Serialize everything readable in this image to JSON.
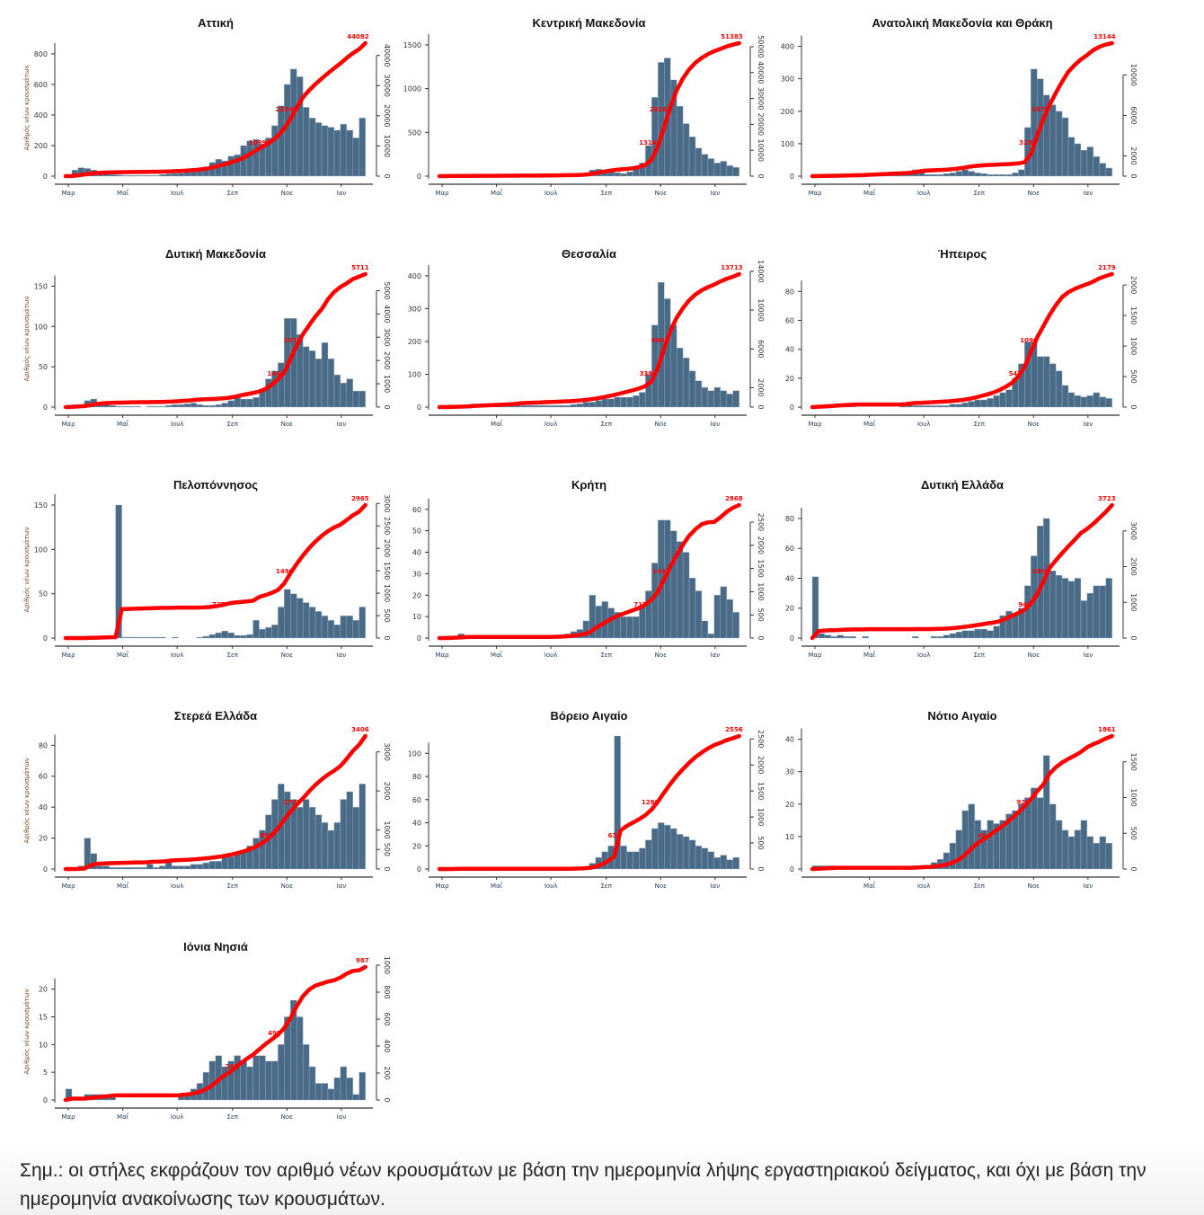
{
  "y_axis_label": "Αριθμός νέων κρουσμάτων",
  "months": [
    "Μαρ",
    "Μαΐ",
    "Ιουλ",
    "Σεπ",
    "Νοε",
    "Ιαν"
  ],
  "note": "Σημ.: οι στήλες εκφράζουν τον αριθμό νέων κρουσμάτων με βάση την ημερομηνία λήψης εργαστηριακού δείγματος, και όχι με βάση την ημερομηνία ανακοίνωσης των κρουσμάτων.",
  "colors": {
    "bars": "#4a6b88",
    "cumulative": "#ff0000"
  },
  "chart_data": [
    {
      "type": "bar+line",
      "title": "Αττική",
      "total": 44082,
      "total_label": "44082",
      "quarter_label": "10990",
      "half_label": "22041",
      "left_max": 870,
      "left_ticks": [
        0,
        200,
        400,
        600,
        800
      ],
      "right_ticks": [
        0,
        10000,
        20000,
        30000,
        40000
      ],
      "month_ticks": [
        0,
        1,
        2,
        3,
        4,
        5
      ],
      "weekly_new_cases": [
        10,
        40,
        55,
        50,
        40,
        20,
        15,
        10,
        8,
        5,
        5,
        5,
        5,
        5,
        5,
        10,
        15,
        18,
        20,
        25,
        30,
        40,
        60,
        90,
        110,
        100,
        130,
        140,
        200,
        230,
        240,
        210,
        250,
        330,
        460,
        600,
        700,
        650,
        450,
        380,
        350,
        330,
        320,
        300,
        340,
        300,
        250,
        380
      ]
    },
    {
      "type": "bar+line",
      "title": "Κεντρική Μακεδονία",
      "total": 51383,
      "total_label": "51383",
      "quarter_label": "13141",
      "half_label": "25264",
      "left_max": 1520,
      "left_ticks": [
        0,
        500,
        1000,
        1500
      ],
      "right_ticks": [
        0,
        10000,
        20000,
        30000,
        40000,
        50000
      ],
      "month_ticks": [
        0,
        1,
        2,
        3,
        4,
        5
      ],
      "weekly_new_cases": [
        5,
        5,
        3,
        3,
        2,
        2,
        2,
        2,
        2,
        2,
        2,
        2,
        2,
        2,
        2,
        2,
        3,
        5,
        5,
        5,
        8,
        10,
        15,
        40,
        70,
        80,
        70,
        60,
        40,
        30,
        50,
        80,
        150,
        350,
        900,
        1300,
        1350,
        1100,
        800,
        600,
        450,
        320,
        250,
        200,
        150,
        170,
        120,
        100
      ]
    },
    {
      "type": "bar+line",
      "title": "Ανατολική Μακεδονία και Θράκη",
      "total": 13144,
      "total_label": "13144",
      "quarter_label": "3283",
      "half_label": "6572",
      "left_max": 410,
      "left_ticks": [
        0,
        100,
        200,
        300,
        400
      ],
      "right_ticks": [
        0,
        2000,
        6000,
        10000
      ],
      "month_ticks": [
        0,
        1,
        2,
        3,
        4,
        5
      ],
      "weekly_new_cases": [
        2,
        2,
        2,
        2,
        2,
        3,
        3,
        3,
        5,
        5,
        5,
        5,
        5,
        5,
        5,
        10,
        20,
        15,
        5,
        5,
        5,
        8,
        10,
        15,
        20,
        15,
        10,
        8,
        5,
        5,
        5,
        5,
        10,
        20,
        150,
        330,
        300,
        250,
        220,
        200,
        180,
        120,
        100,
        80,
        90,
        60,
        40,
        25
      ]
    },
    {
      "type": "bar+line",
      "title": "Δυτική Μακεδονία",
      "total": 5711,
      "total_label": "5711",
      "quarter_label": "1444",
      "half_label": "2872",
      "left_max": 165,
      "left_ticks": [
        0,
        50,
        100,
        150
      ],
      "right_ticks": [
        0,
        1000,
        2000,
        3000,
        4000,
        5000
      ],
      "month_ticks": [
        0,
        1,
        2,
        3,
        4,
        5
      ],
      "weekly_new_cases": [
        2,
        3,
        3,
        8,
        10,
        5,
        3,
        2,
        1,
        1,
        1,
        1,
        0,
        1,
        1,
        1,
        2,
        3,
        3,
        4,
        5,
        3,
        2,
        2,
        3,
        5,
        8,
        12,
        10,
        10,
        12,
        20,
        35,
        45,
        55,
        110,
        110,
        90,
        75,
        70,
        60,
        80,
        60,
        40,
        30,
        35,
        20,
        20
      ]
    },
    {
      "type": "bar+line",
      "title": "Θεσσαλία",
      "total": 13713,
      "total_label": "13713",
      "quarter_label": "3398",
      "half_label": "6901",
      "left_max": 405,
      "left_ticks": [
        0,
        100,
        200,
        300,
        400
      ],
      "right_ticks": [
        0,
        2000,
        6000,
        10000,
        14000
      ],
      "month_ticks": [
        1,
        2,
        3,
        4,
        5
      ],
      "weekly_new_cases": [
        2,
        2,
        3,
        4,
        5,
        10,
        5,
        5,
        5,
        5,
        5,
        8,
        15,
        5,
        5,
        5,
        5,
        5,
        5,
        5,
        5,
        8,
        10,
        15,
        15,
        20,
        25,
        25,
        30,
        30,
        30,
        35,
        45,
        100,
        250,
        380,
        330,
        250,
        180,
        150,
        110,
        80,
        60,
        50,
        60,
        50,
        40,
        50
      ]
    },
    {
      "type": "bar+line",
      "title": "Ήπειρος",
      "total": 2179,
      "total_label": "2179",
      "quarter_label": "547",
      "half_label": "1090",
      "left_max": 92,
      "left_ticks": [
        0,
        20,
        40,
        60,
        80
      ],
      "right_ticks": [
        0,
        500,
        1000,
        1500,
        2000
      ],
      "month_ticks": [
        0,
        1,
        2,
        3,
        4,
        5
      ],
      "weekly_new_cases": [
        1,
        1,
        1,
        2,
        1,
        1,
        1,
        0,
        0,
        0,
        0,
        0,
        0,
        0,
        1,
        3,
        1,
        1,
        1,
        1,
        1,
        1,
        2,
        2,
        3,
        4,
        5,
        5,
        6,
        8,
        10,
        12,
        20,
        30,
        45,
        45,
        35,
        35,
        30,
        25,
        15,
        10,
        8,
        7,
        8,
        10,
        7,
        6
      ]
    },
    {
      "type": "bar+line",
      "title": "Πελοπόννησος",
      "total": 2965,
      "total_label": "2965",
      "quarter_label": "727",
      "half_label": "1490",
      "left_max": 150,
      "left_ticks": [
        0,
        50,
        100,
        150
      ],
      "right_ticks": [
        0,
        500,
        1000,
        1500,
        2000,
        2500,
        3000
      ],
      "month_ticks": [
        0,
        1,
        2,
        3,
        4,
        5
      ],
      "weekly_new_cases": [
        0,
        0,
        0,
        1,
        1,
        1,
        1,
        1,
        150,
        1,
        1,
        1,
        1,
        1,
        1,
        1,
        0,
        1,
        0,
        0,
        0,
        1,
        2,
        4,
        6,
        8,
        6,
        3,
        3,
        4,
        20,
        10,
        12,
        15,
        35,
        55,
        50,
        45,
        40,
        35,
        30,
        25,
        20,
        15,
        25,
        25,
        20,
        35
      ]
    },
    {
      "type": "bar+line",
      "title": "Κρήτη",
      "total": 2868,
      "total_label": "2868",
      "quarter_label": "717",
      "half_label": "1444",
      "left_max": 62,
      "left_ticks": [
        0,
        10,
        20,
        30,
        40,
        50,
        60
      ],
      "right_ticks": [
        0,
        500,
        1000,
        1500,
        2000,
        2500
      ],
      "month_ticks": [
        0,
        1,
        2,
        3,
        4,
        5
      ],
      "weekly_new_cases": [
        0,
        1,
        1,
        2,
        1,
        0,
        0,
        0,
        0,
        0,
        0,
        0,
        0,
        0,
        0,
        0,
        0,
        0,
        1,
        1,
        2,
        3,
        4,
        8,
        20,
        15,
        17,
        14,
        12,
        10,
        10,
        10,
        15,
        22,
        35,
        55,
        55,
        50,
        45,
        40,
        28,
        22,
        8,
        2,
        20,
        24,
        18,
        12
      ]
    },
    {
      "type": "bar+line",
      "title": "Δυτική Ελλάδα",
      "total": 3723,
      "total_label": "3723",
      "quarter_label": "946",
      "half_label": "1861",
      "left_max": 89,
      "left_ticks": [
        0,
        20,
        40,
        60,
        80
      ],
      "right_ticks": [
        0,
        1000,
        2000,
        3000
      ],
      "month_ticks": [
        0,
        1,
        2,
        3,
        4,
        5
      ],
      "weekly_new_cases": [
        41,
        3,
        2,
        1,
        2,
        1,
        1,
        0,
        1,
        0,
        0,
        0,
        0,
        0,
        0,
        0,
        1,
        0,
        0,
        1,
        1,
        2,
        3,
        4,
        5,
        5,
        6,
        6,
        5,
        8,
        15,
        18,
        15,
        20,
        35,
        55,
        75,
        80,
        45,
        42,
        40,
        38,
        40,
        25,
        30,
        35,
        35,
        40
      ]
    },
    {
      "type": "bar+line",
      "title": "Στερεά Ελλάδα",
      "total": 3406,
      "total_label": "3406",
      "quarter_label": "852",
      "half_label": "1703",
      "left_max": 86,
      "left_ticks": [
        0,
        20,
        40,
        60,
        80
      ],
      "right_ticks": [
        0,
        500,
        1000,
        2000,
        3000
      ],
      "month_ticks": [
        0,
        1,
        2,
        3,
        4,
        5
      ],
      "weekly_new_cases": [
        0,
        1,
        2,
        20,
        10,
        2,
        2,
        1,
        1,
        1,
        1,
        1,
        1,
        3,
        1,
        2,
        5,
        2,
        2,
        2,
        3,
        3,
        4,
        5,
        5,
        8,
        8,
        10,
        12,
        15,
        20,
        25,
        35,
        45,
        55,
        50,
        45,
        40,
        45,
        40,
        35,
        30,
        25,
        30,
        45,
        50,
        40,
        55
      ]
    },
    {
      "type": "bar+line",
      "title": "Βόρειο Αιγαίο",
      "total": 2556,
      "total_label": "2556",
      "quarter_label": "636",
      "half_label": "1280",
      "left_max": 115,
      "left_ticks": [
        0,
        20,
        40,
        60,
        80,
        100
      ],
      "right_ticks": [
        0,
        500,
        1000,
        1500,
        2000,
        2500
      ],
      "month_ticks": [
        0,
        1,
        2,
        3,
        4,
        5
      ],
      "weekly_new_cases": [
        0,
        0,
        1,
        0,
        0,
        0,
        0,
        0,
        0,
        0,
        0,
        0,
        0,
        0,
        0,
        0,
        0,
        0,
        0,
        0,
        0,
        1,
        1,
        2,
        5,
        10,
        15,
        20,
        115,
        20,
        15,
        15,
        18,
        25,
        35,
        40,
        38,
        35,
        30,
        28,
        25,
        20,
        18,
        15,
        10,
        12,
        8,
        10
      ]
    },
    {
      "type": "bar+line",
      "title": "Νότιο Αιγαίο",
      "total": 1861,
      "total_label": "1861",
      "quarter_label": "464",
      "half_label": "928",
      "left_max": 41,
      "left_ticks": [
        0,
        10,
        20,
        30,
        40
      ],
      "right_ticks": [
        0,
        500,
        1000,
        1500
      ],
      "month_ticks": [
        1,
        2,
        3,
        4,
        5
      ],
      "weekly_new_cases": [
        1,
        1,
        1,
        1,
        0,
        0,
        0,
        0,
        0,
        0,
        0,
        0,
        0,
        0,
        0,
        0,
        1,
        1,
        1,
        2,
        3,
        5,
        8,
        12,
        18,
        20,
        15,
        12,
        15,
        14,
        15,
        17,
        18,
        20,
        22,
        25,
        22,
        35,
        20,
        15,
        12,
        10,
        12,
        15,
        10,
        8,
        10,
        8
      ]
    },
    {
      "type": "bar+line",
      "title": "Ιόνια Νησιά",
      "total": 987,
      "total_label": "987",
      "quarter_label": "246",
      "half_label": "495",
      "left_max": 24,
      "left_ticks": [
        0,
        5,
        10,
        15,
        20
      ],
      "right_ticks": [
        0,
        200,
        400,
        600,
        800,
        1000
      ],
      "month_ticks": [
        0,
        1,
        2,
        3,
        4,
        5
      ],
      "weekly_new_cases": [
        2,
        0,
        0,
        1,
        1,
        1,
        1,
        1,
        0,
        0,
        0,
        0,
        0,
        0,
        0,
        0,
        0,
        0,
        1,
        1,
        2,
        3,
        5,
        7,
        8,
        6,
        7,
        8,
        7,
        6,
        8,
        8,
        7,
        7,
        10,
        15,
        18,
        15,
        10,
        6,
        3,
        3,
        2,
        4,
        6,
        4,
        1,
        5
      ]
    }
  ]
}
